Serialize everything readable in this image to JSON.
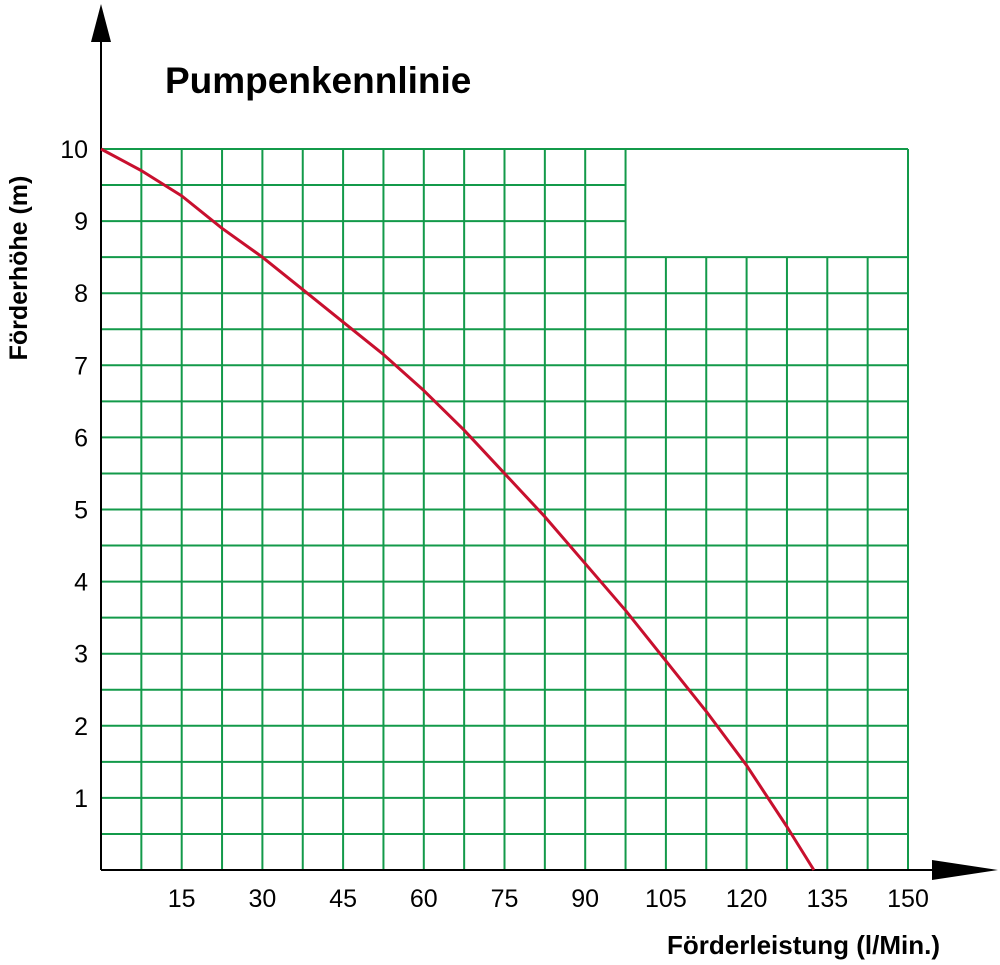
{
  "chart_data": {
    "type": "line",
    "title": "Pumpenkennlinie",
    "x_label": "Förderleistung (l/Min.)",
    "y_label": "Förderhöhe (m)",
    "x": [
      0,
      7.5,
      15,
      22.5,
      30,
      37.5,
      45,
      52.5,
      60,
      67.5,
      75,
      82.5,
      90,
      97.5,
      105,
      112.5,
      120,
      127.5,
      132.5
    ],
    "series": [
      {
        "name": "Pumpenkennlinie",
        "color": "#c8102e",
        "values": [
          10,
          9.7,
          9.35,
          8.9,
          8.5,
          8.05,
          7.6,
          7.15,
          6.65,
          6.1,
          5.5,
          4.9,
          4.25,
          3.6,
          2.9,
          2.2,
          1.45,
          0.6,
          0
        ]
      }
    ],
    "xlim": [
      0,
      150
    ],
    "ylim": [
      0,
      10
    ],
    "xticks": [
      15,
      30,
      45,
      60,
      75,
      90,
      105,
      120,
      135,
      150
    ],
    "yticks": [
      1,
      2,
      3,
      4,
      5,
      6,
      7,
      8,
      9,
      10
    ],
    "grid": true,
    "grid_color": "#139a4a"
  }
}
